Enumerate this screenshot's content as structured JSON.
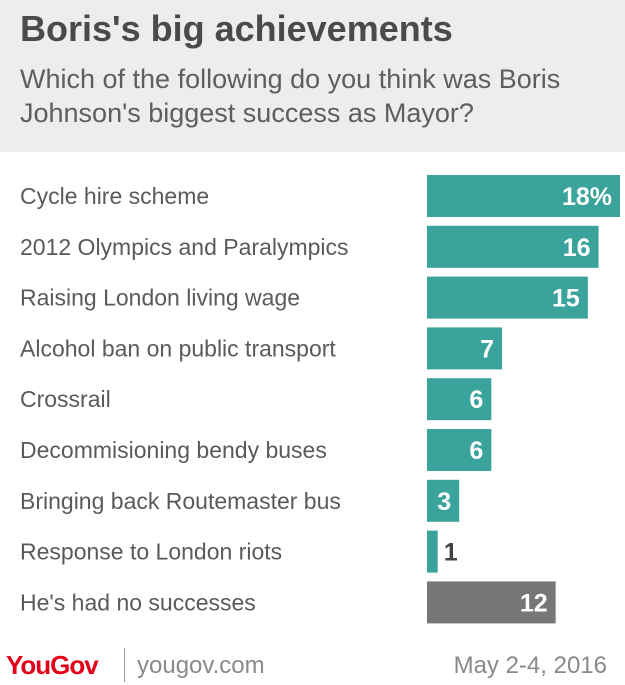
{
  "header": {
    "title": "Boris's big achievements",
    "subtitle": "Which of the following do you think was Boris Johnson's biggest success as Mayor?"
  },
  "chart_data": {
    "type": "bar",
    "orientation": "horizontal",
    "title": "Boris's big achievements",
    "subtitle": "Which of the following do you think was Boris Johnson's biggest success as Mayor?",
    "categories": [
      "Cycle hire scheme",
      "2012 Olympics and Paralympics",
      "Raising London living wage",
      "Alcohol ban on public transport",
      "Crossrail",
      "Decommisioning bendy buses",
      "Bringing back Routemaster bus",
      "Response to London riots",
      "He's had no successes"
    ],
    "values": [
      18,
      16,
      15,
      7,
      6,
      6,
      3,
      1,
      12
    ],
    "value_labels": [
      "18%",
      "16",
      "15",
      "7",
      "6",
      "6",
      "3",
      "1",
      "12"
    ],
    "bar_colors": [
      "#3aa39b",
      "#3aa39b",
      "#3aa39b",
      "#3aa39b",
      "#3aa39b",
      "#3aa39b",
      "#3aa39b",
      "#3aa39b",
      "#777777"
    ],
    "unit": "%",
    "xlim": [
      0,
      18
    ],
    "grid": false,
    "legend": "none"
  },
  "footer": {
    "brand": "YouGov",
    "site": "yougov.com",
    "date": "May 2-4, 2016"
  },
  "colors": {
    "accent": "#3aa39b",
    "neutral_bar": "#777777",
    "header_bg": "#ededed",
    "brand_red": "#e2001a"
  }
}
